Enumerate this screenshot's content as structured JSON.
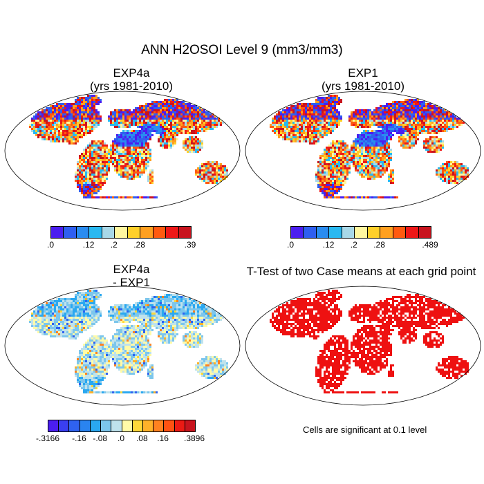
{
  "figure_title": "ANN H2OSOI Level 9 (mm3/mm3)",
  "panels": {
    "top_left": {
      "title_line1": "EXP4a",
      "title_line2": "(yrs 1981-2010)"
    },
    "top_right": {
      "title_line1": "EXP1",
      "title_line2": "(yrs 1981-2010)"
    },
    "bottom_left": {
      "title_line1": "EXP4a",
      "title_line2": "- EXP1"
    },
    "bottom_right": {
      "title_line1": "T-Test of two Case means at each grid point"
    }
  },
  "colorbars": {
    "top_left": {
      "colors": [
        "#4b1ef0",
        "#2f5ff0",
        "#2a8cf0",
        "#29b8f0",
        "#a8d8e8",
        "#fff7a0",
        "#ffd02a",
        "#ffa020",
        "#ff5a10",
        "#ee1818",
        "#c8141e"
      ],
      "labels": [
        ".0",
        ".12",
        ".2",
        ".28",
        ".39"
      ]
    },
    "top_right": {
      "colors": [
        "#4b1ef0",
        "#2f5ff0",
        "#2a8cf0",
        "#29b8f0",
        "#a8d8e8",
        "#fff7a0",
        "#ffd02a",
        "#ffa020",
        "#ff5a10",
        "#ee1818",
        "#c8141e"
      ],
      "labels": [
        ".0",
        ".12",
        ".2",
        ".28",
        ".489"
      ]
    },
    "bottom_left": {
      "colors": [
        "#4b1ef0",
        "#3a3ff0",
        "#2f62f0",
        "#2a84f0",
        "#2aa8f0",
        "#7cc6ec",
        "#bfe2ec",
        "#fffaa8",
        "#ffd83a",
        "#ffb22a",
        "#ff8220",
        "#ff5212",
        "#ec1a14",
        "#c8141e"
      ],
      "labels": [
        "-.3166",
        "-.16",
        "-.08",
        ".0",
        ".08",
        ".16",
        ".3896"
      ]
    }
  },
  "ttest_note": "Cells are significant at 0.1 level",
  "ttest_color": "#ee1111"
}
